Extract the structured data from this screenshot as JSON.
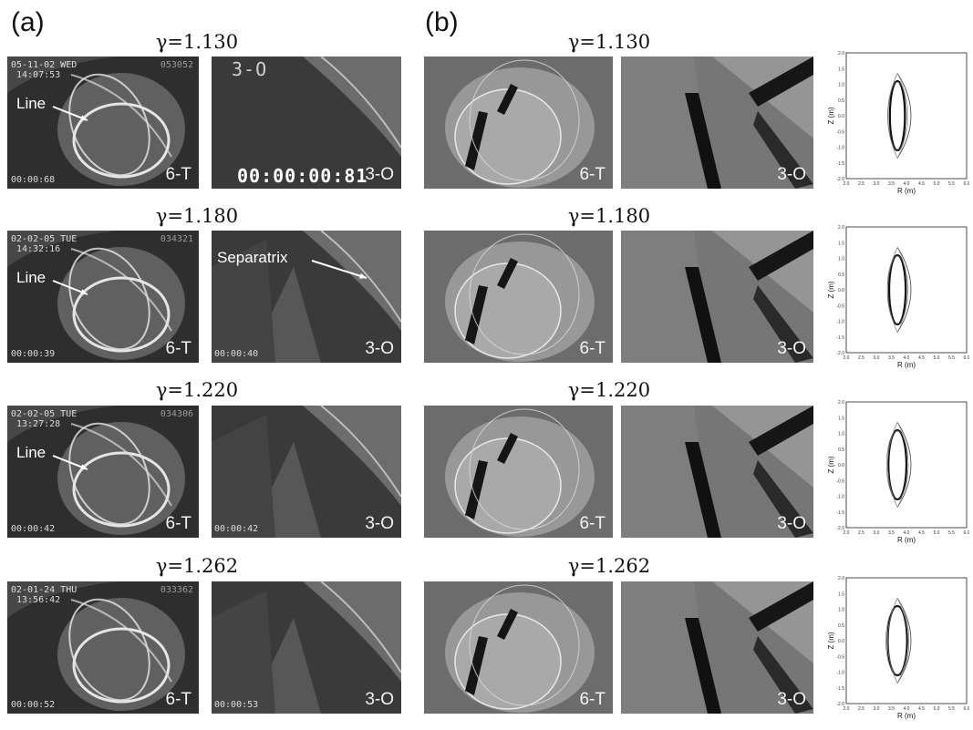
{
  "labels": {
    "a": "(a)",
    "b": "(b)"
  },
  "rows": [
    {
      "gamma": "γ=1.130",
      "exp_t": {
        "date": "05-11-02 WED",
        "time": "14:07:53",
        "shot": "053052",
        "timer": "00:00:68",
        "tag": "6-T",
        "anno": "Line"
      },
      "exp_o": {
        "header": "3-O",
        "timer": "00:00:00:81",
        "tag": "3-O"
      },
      "sim_t_tag": "6-T",
      "sim_o_tag": "3-O"
    },
    {
      "gamma": "γ=1.180",
      "exp_t": {
        "date": "02-02-05 TUE",
        "time": "14:32:16",
        "shot": "034321",
        "timer": "00:00:39",
        "tag": "6-T",
        "anno": "Line"
      },
      "exp_o": {
        "timer": "00:00:40",
        "tag": "3-O",
        "anno": "Separatrix"
      },
      "sim_t_tag": "6-T",
      "sim_o_tag": "3-O"
    },
    {
      "gamma": "γ=1.220",
      "exp_t": {
        "date": "02-02-05 TUE",
        "time": "13:27:28",
        "shot": "034306",
        "timer": "00:00:42",
        "tag": "6-T",
        "anno": "Line"
      },
      "exp_o": {
        "timer": "00:00:42",
        "tag": "3-O"
      },
      "sim_t_tag": "6-T",
      "sim_o_tag": "3-O"
    },
    {
      "gamma": "γ=1.262",
      "exp_t": {
        "date": "02-01-24 THU",
        "time": "13:56:42",
        "shot": "033362",
        "timer": "00:00:52",
        "tag": "6-T"
      },
      "exp_o": {
        "timer": "00:00:53",
        "tag": "3-O"
      },
      "sim_t_tag": "6-T",
      "sim_o_tag": "3-O"
    }
  ],
  "plot": {
    "ylabel": "Z (m)",
    "xlabel": "R (m)",
    "xticks": [
      "2.0",
      "2.5",
      "3.0",
      "3.5",
      "4.0",
      "4.5",
      "5.0",
      "5.5",
      "6.0"
    ],
    "yticks": [
      "2.0",
      "1.5",
      "1.0",
      "0.5",
      "0.0",
      "-0.5",
      "-1.0",
      "-1.5",
      "-2.0"
    ]
  }
}
